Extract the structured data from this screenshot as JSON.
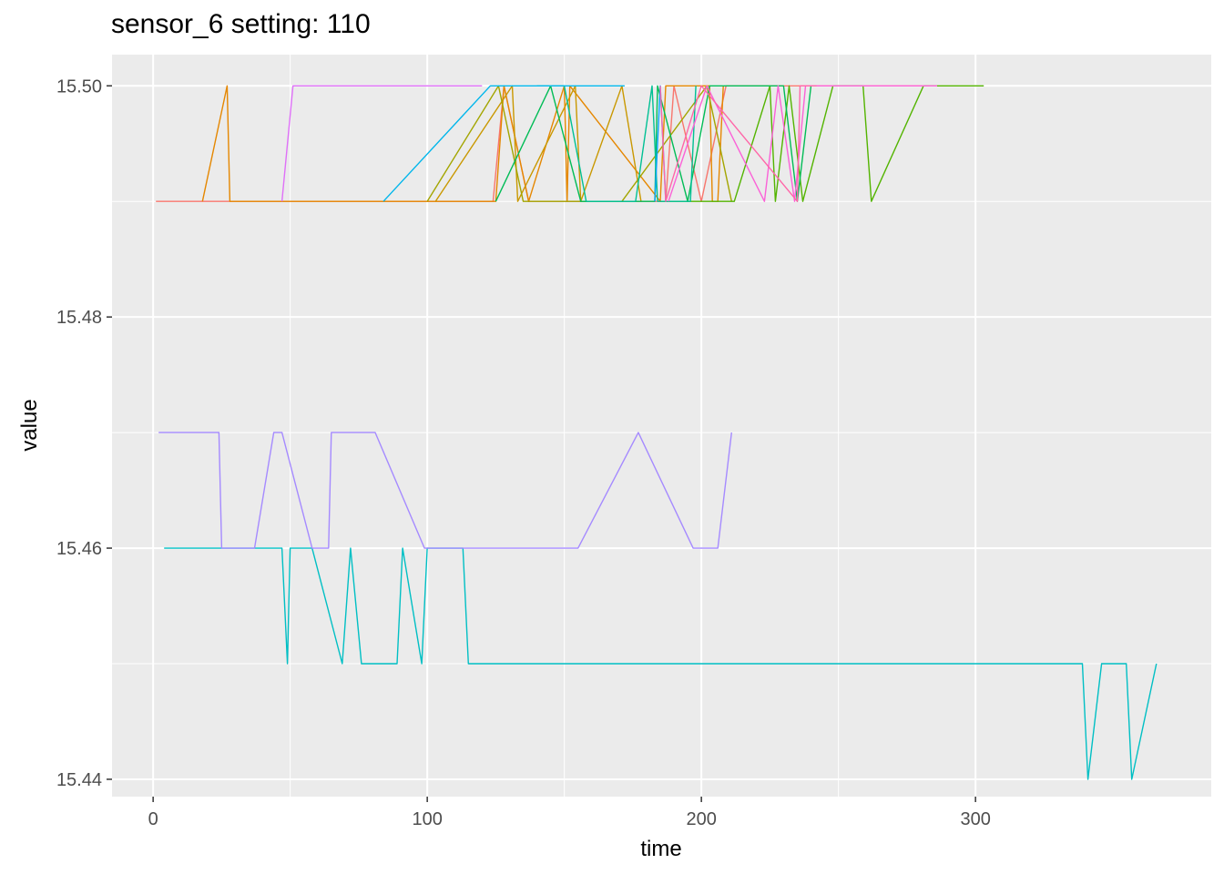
{
  "chart_data": {
    "type": "line",
    "title": "sensor_6 setting: 110",
    "xlabel": "time",
    "ylabel": "value",
    "xlim": [
      -15,
      386
    ],
    "ylim": [
      15.4385,
      15.5027
    ],
    "x_ticks": [
      0,
      100,
      200,
      300
    ],
    "x_tick_labels": [
      "0",
      "100",
      "200",
      "300"
    ],
    "y_ticks": [
      15.44,
      15.46,
      15.48,
      15.5
    ],
    "y_tick_labels": [
      "15.44",
      "15.46",
      "15.48",
      "15.50"
    ],
    "grid": true,
    "legend": "none",
    "series": [
      {
        "color": "#F8766D",
        "x": [
          1,
          124,
          128,
          137,
          187,
          190,
          200,
          209,
          285
        ],
        "y": [
          15.49,
          15.49,
          15.5,
          15.49,
          15.49,
          15.5,
          15.49,
          15.5,
          15.5
        ]
      },
      {
        "color": "#E58700",
        "x": [
          18,
          27,
          28,
          125,
          128,
          137,
          150,
          151,
          152,
          185,
          187,
          203,
          204,
          206,
          208
        ],
        "y": [
          15.49,
          15.5,
          15.49,
          15.49,
          15.5,
          15.49,
          15.5,
          15.49,
          15.5,
          15.49,
          15.5,
          15.5,
          15.49,
          15.49,
          15.5
        ]
      },
      {
        "color": "#C99800",
        "x": [
          103,
          131,
          133,
          154,
          156,
          171,
          178
        ],
        "y": [
          15.49,
          15.5,
          15.49,
          15.5,
          15.49,
          15.5,
          15.49
        ]
      },
      {
        "color": "#A3A500",
        "x": [
          100,
          126,
          135,
          171,
          202,
          211
        ],
        "y": [
          15.49,
          15.5,
          15.49,
          15.49,
          15.5,
          15.49
        ]
      },
      {
        "color": "#53B400",
        "x": [
          185,
          212,
          225,
          227,
          232,
          237,
          248,
          259,
          262,
          281,
          303
        ],
        "y": [
          15.49,
          15.49,
          15.5,
          15.49,
          15.5,
          15.49,
          15.5,
          15.5,
          15.49,
          15.5,
          15.5
        ]
      },
      {
        "color": "#00BC56",
        "x": [
          125,
          145,
          156,
          183,
          184,
          195,
          203,
          230,
          235,
          240
        ],
        "y": [
          15.49,
          15.5,
          15.49,
          15.49,
          15.5,
          15.49,
          15.5,
          15.5,
          15.49,
          15.5
        ]
      },
      {
        "color": "#00C094",
        "x": [
          140,
          150,
          158,
          176,
          182,
          184,
          196,
          198
        ],
        "y": [
          15.5,
          15.5,
          15.49,
          15.49,
          15.5,
          15.49,
          15.49,
          15.5
        ]
      },
      {
        "color": "#00BFC4",
        "x": [
          4,
          47,
          49,
          50,
          58,
          69,
          72,
          76,
          89,
          91,
          98,
          100,
          113,
          115,
          339,
          341,
          346,
          355,
          357,
          366
        ],
        "y": [
          15.46,
          15.46,
          15.45,
          15.46,
          15.46,
          15.45,
          15.46,
          15.45,
          15.45,
          15.46,
          15.45,
          15.46,
          15.46,
          15.45,
          15.45,
          15.44,
          15.45,
          15.45,
          15.44,
          15.45
        ]
      },
      {
        "color": "#00B6EB",
        "x": [
          84,
          123,
          138,
          172
        ],
        "y": [
          15.49,
          15.5,
          15.5,
          15.5
        ]
      },
      {
        "color": "#06A4FF",
        "x": [
          183,
          185,
          187
        ],
        "y": [
          15.49,
          15.5,
          15.49
        ]
      },
      {
        "color": "#A58AFF",
        "x": [
          2,
          24,
          25,
          37,
          44,
          47,
          58,
          64,
          65,
          81,
          99,
          155,
          177,
          197,
          206,
          211
        ],
        "y": [
          15.47,
          15.47,
          15.46,
          15.46,
          15.47,
          15.47,
          15.46,
          15.46,
          15.47,
          15.47,
          15.46,
          15.46,
          15.47,
          15.46,
          15.46,
          15.47
        ]
      },
      {
        "color": "#DF70F8",
        "x": [
          47,
          51,
          55,
          120
        ],
        "y": [
          15.49,
          15.5,
          15.5,
          15.5
        ]
      },
      {
        "color": "#FB61D7",
        "x": [
          188,
          202,
          223,
          228,
          234,
          238,
          286
        ],
        "y": [
          15.49,
          15.5,
          15.49,
          15.5,
          15.49,
          15.5,
          15.5
        ]
      },
      {
        "color": "#FF66A8",
        "x": [
          185,
          187,
          200,
          235,
          236,
          242
        ],
        "y": [
          15.5,
          15.49,
          15.5,
          15.49,
          15.5,
          15.5
        ]
      }
    ]
  }
}
